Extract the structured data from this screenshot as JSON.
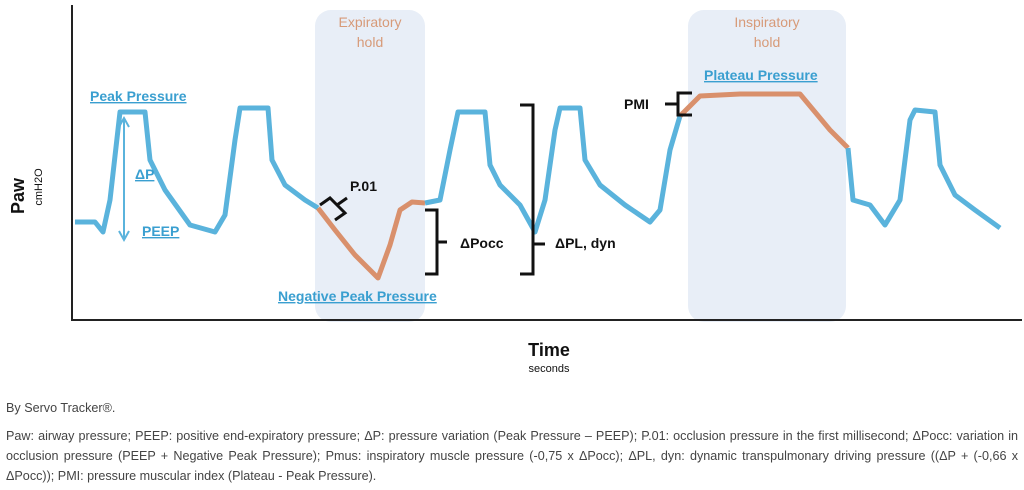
{
  "regions": [
    {
      "lines": [
        "Expiratory",
        "hold"
      ]
    },
    {
      "lines": [
        "Inspiratory",
        "hold"
      ]
    }
  ],
  "labels": {
    "peak_pressure": "Peak Pressure",
    "delta_p": "ΔP",
    "peep": "PEEP",
    "p01": "P.01",
    "delta_pocc": "ΔPocc",
    "delta_pl_dyn": "ΔPL, dyn",
    "pmi": "PMI",
    "plateau_pressure": "Plateau Pressure",
    "negative_peak_pressure": "Negative Peak Pressure"
  },
  "axes": {
    "y_title": "Paw",
    "y_unit": "cmH2O",
    "x_title": "Time",
    "x_unit": "seconds"
  },
  "caption": {
    "source": "By Servo Tracker®.",
    "text": "Paw: airway pressure; PEEP: positive end-expiratory pressure; ΔP: pressure variation (Peak Pressure – PEEP); P.01: occlusion pressure in the first millisecond; ΔPocc: variation in occlusion pressure (PEEP + Negative Peak Pressure); Pmus: inspiratory muscle pressure (-0,75 x ΔPocc); ΔPL, dyn: dynamic transpulmonary driving pressure ((ΔP + (-0,66 x ΔPocc)); PMI: pressure muscular index (Plateau - Peak Pressure)."
  }
}
